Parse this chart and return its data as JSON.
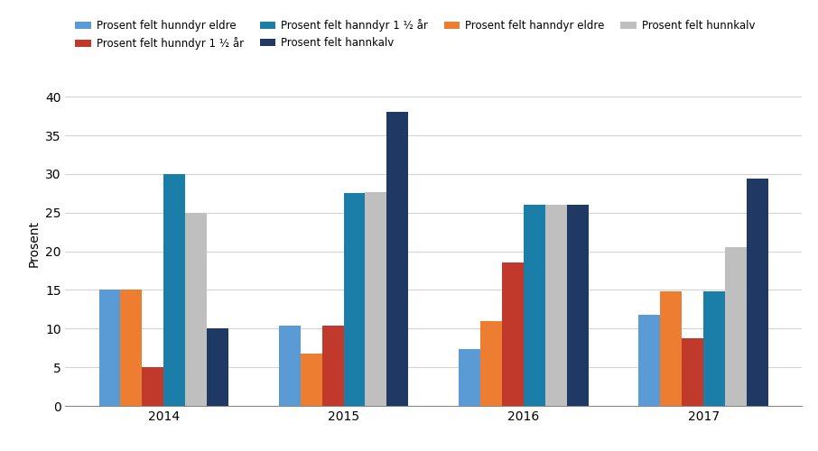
{
  "years": [
    "2014",
    "2015",
    "2016",
    "2017"
  ],
  "series": [
    {
      "label": "Prosent felt hunndyr eldre",
      "color": "#5B9BD5",
      "values": [
        15.0,
        10.4,
        7.3,
        11.8
      ]
    },
    {
      "label": "Prosent felt hanndyr eldre",
      "color": "#ED7D31",
      "values": [
        15.0,
        6.8,
        11.0,
        14.8
      ]
    },
    {
      "label": "Prosent felt hunndyr 1 ½ år",
      "color": "#C0392B",
      "values": [
        5.0,
        10.4,
        18.6,
        8.7
      ]
    },
    {
      "label": "Prosent felt hanndyr 1 ½ år",
      "color": "#1A7EA8",
      "values": [
        30.0,
        27.5,
        26.0,
        14.8
      ]
    },
    {
      "label": "Prosent felt hunnkalv",
      "color": "#BFBFBF",
      "values": [
        25.0,
        27.6,
        26.0,
        20.5
      ]
    },
    {
      "label": "Prosent felt hannkalv",
      "color": "#1F3864",
      "values": [
        10.0,
        38.0,
        26.0,
        29.4
      ]
    }
  ],
  "ylabel": "Prosent",
  "ylim": [
    0,
    42
  ],
  "yticks": [
    0,
    5,
    10,
    15,
    20,
    25,
    30,
    35,
    40
  ],
  "background_color": "#FFFFFF",
  "grid_color": "#D3D3D3",
  "bar_width": 0.12,
  "legend_fontsize": 8.5,
  "axis_fontsize": 10,
  "legend_order": [
    0,
    2,
    3,
    5,
    1,
    4
  ]
}
